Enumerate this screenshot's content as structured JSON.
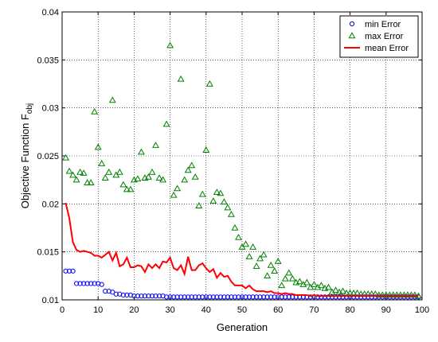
{
  "chart_data": {
    "type": "scatter",
    "title": "",
    "xlabel": "Generation",
    "ylabel_main": "Objective Function F",
    "ylabel_sub": "obj",
    "xlim": [
      0,
      100
    ],
    "ylim": [
      0.01,
      0.04
    ],
    "xticks": [
      0,
      10,
      20,
      30,
      40,
      50,
      60,
      70,
      80,
      90,
      100
    ],
    "xtick_labels": [
      "0",
      "10",
      "20",
      "30",
      "40",
      "50",
      "60",
      "70",
      "80",
      "90",
      "100"
    ],
    "yticks": [
      0.01,
      0.015,
      0.02,
      0.025,
      0.03,
      0.035,
      0.04
    ],
    "ytick_labels": [
      "0.01",
      "0.015",
      "0.02",
      "0.025",
      "0.03",
      "0.035",
      "0.04"
    ],
    "grid": true,
    "legend_position": "top-right",
    "series": [
      {
        "name": "min Error",
        "marker": "circle",
        "color": "#0000ff",
        "x": [
          1,
          2,
          3,
          4,
          5,
          6,
          7,
          8,
          9,
          10,
          11,
          12,
          13,
          14,
          15,
          16,
          17,
          18,
          19,
          20,
          21,
          22,
          23,
          24,
          25,
          26,
          27,
          28,
          29,
          30,
          31,
          32,
          33,
          34,
          35,
          36,
          37,
          38,
          39,
          40,
          41,
          42,
          43,
          44,
          45,
          46,
          47,
          48,
          49,
          50,
          51,
          52,
          53,
          54,
          55,
          56,
          57,
          58,
          59,
          60,
          61,
          62,
          63,
          64,
          65,
          66,
          67,
          68,
          69,
          70,
          71,
          72,
          73,
          74,
          75,
          76,
          77,
          78,
          79,
          80,
          81,
          82,
          83,
          84,
          85,
          86,
          87,
          88,
          89,
          90,
          91,
          92,
          93,
          94,
          95,
          96,
          97,
          98,
          99
        ],
        "y": [
          0.013,
          0.013,
          0.013,
          0.0117,
          0.0117,
          0.0117,
          0.0117,
          0.0117,
          0.0117,
          0.0117,
          0.0116,
          0.0109,
          0.0109,
          0.0108,
          0.0106,
          0.0106,
          0.0105,
          0.0105,
          0.0105,
          0.0104,
          0.0104,
          0.0104,
          0.0104,
          0.0104,
          0.0104,
          0.0104,
          0.0104,
          0.0104,
          0.0103,
          0.0103,
          0.0103,
          0.0103,
          0.0103,
          0.0103,
          0.0103,
          0.0103,
          0.0103,
          0.0103,
          0.0103,
          0.0103,
          0.0103,
          0.0103,
          0.0103,
          0.0103,
          0.0103,
          0.0103,
          0.0103,
          0.0103,
          0.0103,
          0.0103,
          0.0103,
          0.0103,
          0.0103,
          0.0103,
          0.0103,
          0.0103,
          0.0103,
          0.0103,
          0.0103,
          0.0103,
          0.0103,
          0.0103,
          0.0103,
          0.0103,
          0.0103,
          0.0103,
          0.0103,
          0.0103,
          0.0103,
          0.0103,
          0.0103,
          0.0103,
          0.0103,
          0.0103,
          0.0103,
          0.0103,
          0.0103,
          0.0103,
          0.0103,
          0.0103,
          0.0103,
          0.0103,
          0.0103,
          0.0103,
          0.0103,
          0.0103,
          0.0103,
          0.0103,
          0.0103,
          0.0103,
          0.0103,
          0.0103,
          0.0103,
          0.0103,
          0.0103,
          0.0103,
          0.0103,
          0.0103,
          0.0103
        ]
      },
      {
        "name": "max Error",
        "marker": "triangle",
        "color": "#008000",
        "x": [
          1,
          2,
          3,
          4,
          5,
          6,
          7,
          8,
          9,
          10,
          11,
          12,
          13,
          14,
          15,
          16,
          17,
          18,
          19,
          20,
          21,
          22,
          23,
          24,
          25,
          26,
          27,
          28,
          29,
          30,
          31,
          32,
          33,
          34,
          35,
          36,
          37,
          38,
          39,
          40,
          41,
          42,
          43,
          44,
          45,
          46,
          47,
          48,
          49,
          50,
          51,
          52,
          53,
          54,
          55,
          56,
          57,
          58,
          59,
          60,
          61,
          62,
          63,
          64,
          65,
          66,
          67,
          68,
          69,
          70,
          71,
          72,
          73,
          74,
          75,
          76,
          77,
          78,
          79,
          80,
          81,
          82,
          83,
          84,
          85,
          86,
          87,
          88,
          89,
          90,
          91,
          92,
          93,
          94,
          95,
          96,
          97,
          98,
          99
        ],
        "y": [
          0.0248,
          0.0234,
          0.023,
          0.0225,
          0.0233,
          0.0232,
          0.0222,
          0.0222,
          0.0296,
          0.0259,
          0.0242,
          0.0227,
          0.0233,
          0.0308,
          0.023,
          0.0233,
          0.022,
          0.0215,
          0.0215,
          0.0225,
          0.0226,
          0.0254,
          0.0227,
          0.0228,
          0.0233,
          0.0261,
          0.0227,
          0.0225,
          0.0283,
          0.0365,
          0.0209,
          0.0216,
          0.033,
          0.0225,
          0.0235,
          0.024,
          0.0228,
          0.0198,
          0.021,
          0.0256,
          0.0325,
          0.0203,
          0.0212,
          0.0211,
          0.0202,
          0.0196,
          0.0189,
          0.0175,
          0.0165,
          0.0155,
          0.0158,
          0.0145,
          0.0155,
          0.0135,
          0.0143,
          0.0147,
          0.0125,
          0.0136,
          0.013,
          0.014,
          0.0115,
          0.0122,
          0.0128,
          0.0122,
          0.0118,
          0.0119,
          0.0116,
          0.0118,
          0.0113,
          0.0116,
          0.0113,
          0.0115,
          0.0112,
          0.0113,
          0.0108,
          0.011,
          0.0108,
          0.0109,
          0.0107,
          0.0107,
          0.0107,
          0.0107,
          0.0106,
          0.0106,
          0.0106,
          0.0106,
          0.0106,
          0.0105,
          0.0105,
          0.0105,
          0.0105,
          0.0105,
          0.0105,
          0.0105,
          0.0105,
          0.0105,
          0.0105,
          0.0105,
          0.0104
        ]
      },
      {
        "name": "mean Error",
        "marker": "line",
        "color": "#ff0000",
        "x": [
          1,
          2,
          3,
          4,
          5,
          6,
          7,
          8,
          9,
          10,
          11,
          12,
          13,
          14,
          15,
          16,
          17,
          18,
          19,
          20,
          21,
          22,
          23,
          24,
          25,
          26,
          27,
          28,
          29,
          30,
          31,
          32,
          33,
          34,
          35,
          36,
          37,
          38,
          39,
          40,
          41,
          42,
          43,
          44,
          45,
          46,
          47,
          48,
          49,
          50,
          51,
          52,
          53,
          54,
          55,
          56,
          57,
          58,
          59,
          60,
          61,
          62,
          63,
          64,
          65,
          66,
          67,
          68,
          69,
          70,
          71,
          72,
          73,
          74,
          75,
          76,
          77,
          78,
          79,
          80,
          81,
          82,
          83,
          84,
          85,
          86,
          87,
          88,
          89,
          90,
          91,
          92,
          93,
          94,
          95,
          96,
          97,
          98,
          99
        ],
        "y": [
          0.0201,
          0.0185,
          0.016,
          0.0152,
          0.015,
          0.0151,
          0.015,
          0.0149,
          0.0146,
          0.0146,
          0.0144,
          0.0147,
          0.015,
          0.0141,
          0.0149,
          0.0135,
          0.0137,
          0.0144,
          0.0134,
          0.0134,
          0.0136,
          0.0135,
          0.0129,
          0.0137,
          0.0133,
          0.0137,
          0.0133,
          0.014,
          0.0139,
          0.0144,
          0.0133,
          0.0131,
          0.0136,
          0.0127,
          0.0145,
          0.0131,
          0.0131,
          0.0136,
          0.0138,
          0.0133,
          0.0129,
          0.0132,
          0.0123,
          0.0128,
          0.0124,
          0.0125,
          0.0119,
          0.0115,
          0.0115,
          0.0115,
          0.0112,
          0.0115,
          0.0111,
          0.0109,
          0.0109,
          0.0109,
          0.0108,
          0.0109,
          0.0107,
          0.0107,
          0.0106,
          0.0107,
          0.0106,
          0.0106,
          0.0105,
          0.0105,
          0.0105,
          0.0105,
          0.0104,
          0.0105,
          0.0104,
          0.0104,
          0.0104,
          0.0104,
          0.0104,
          0.0104,
          0.0104,
          0.0104,
          0.0104,
          0.0104,
          0.0104,
          0.0104,
          0.0104,
          0.0104,
          0.0104,
          0.0104,
          0.0104,
          0.0104,
          0.0104,
          0.0104,
          0.0104,
          0.0104,
          0.0104,
          0.0104,
          0.0104,
          0.0104,
          0.0104,
          0.0104,
          0.0104
        ]
      }
    ]
  }
}
